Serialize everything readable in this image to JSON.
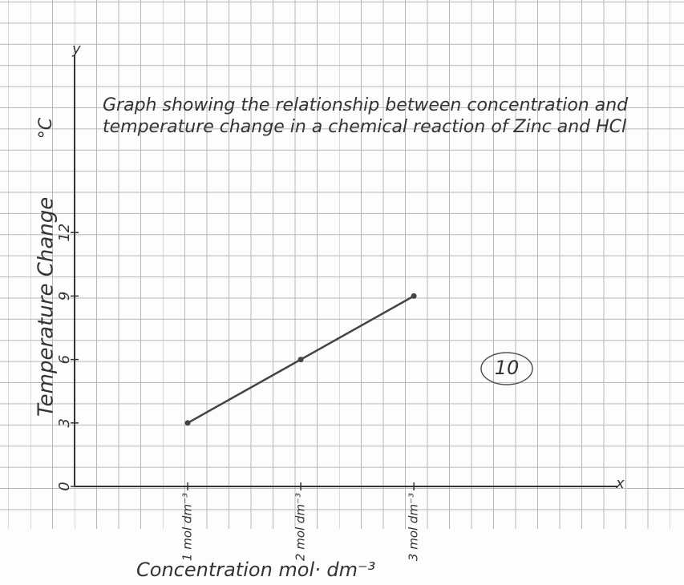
{
  "chart_data": {
    "type": "line",
    "title": "Graph showing the relationship between concentration and temperature change in a chemical reaction of Zinc and HCl",
    "ylabel": "Temperature Change",
    "yunit": "°C",
    "xlabel": "Concentration mol· dm⁻³",
    "xaxis_letter": "x",
    "yaxis_letter": "y",
    "annotation": "10",
    "x": [
      1,
      2,
      3
    ],
    "series": [
      {
        "color": "#444444",
        "values": [
          3,
          6,
          9
        ]
      }
    ],
    "xlim": [
      0,
      4.8
    ],
    "xticks": [
      {
        "value": 1,
        "label": "1 mol dm⁻³"
      },
      {
        "value": 2,
        "label": "2 mol dm⁻³"
      },
      {
        "value": 3,
        "label": "3 mol dm⁻³"
      }
    ],
    "ylim": [
      0,
      20
    ],
    "yticks": [
      0,
      3,
      6,
      9,
      12
    ]
  }
}
